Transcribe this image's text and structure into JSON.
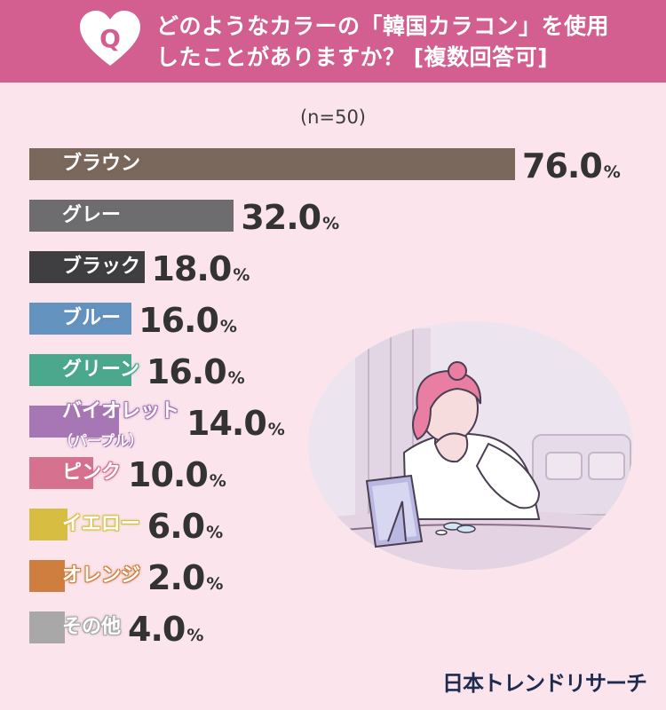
{
  "header": {
    "badge": "Q",
    "question_line1": "どのようなカラーの「韓国カラコン」を使用",
    "question_line2": "したことがありますか？ [複数回答可]"
  },
  "sample_size": "(n=50)",
  "brand": "日本トレンドリサーチ",
  "colors": {
    "header_bg": "#d25f8f",
    "page_bg": "#fbe4ec"
  },
  "chart_data": {
    "type": "bar",
    "orientation": "horizontal",
    "unit": "%",
    "categories": [
      "ブラウン",
      "グレー",
      "ブラック",
      "ブルー",
      "グリーン",
      "バイオレット（パープル）",
      "ピンク",
      "イエロー",
      "オレンジ",
      "その他"
    ],
    "values": [
      76.0,
      32.0,
      18.0,
      16.0,
      16.0,
      14.0,
      10.0,
      6.0,
      2.0,
      4.0
    ],
    "bars": [
      {
        "label": "ブラウン",
        "sub": "",
        "value": 76.0,
        "value_text": "76.0",
        "color": "#7a685c"
      },
      {
        "label": "グレー",
        "sub": "",
        "value": 32.0,
        "value_text": "32.0",
        "color": "#6d6d6f"
      },
      {
        "label": "ブラック",
        "sub": "",
        "value": 18.0,
        "value_text": "18.0",
        "color": "#3f3f41"
      },
      {
        "label": "ブルー",
        "sub": "",
        "value": 16.0,
        "value_text": "16.0",
        "color": "#6493bf"
      },
      {
        "label": "グリーン",
        "sub": "",
        "value": 16.0,
        "value_text": "16.0",
        "color": "#4ba88d"
      },
      {
        "label": "バイオレット",
        "sub": "（パープル）",
        "value": 14.0,
        "value_text": "14.0",
        "color": "#a777b5"
      },
      {
        "label": "ピンク",
        "sub": "",
        "value": 10.0,
        "value_text": "10.0",
        "color": "#d6718f"
      },
      {
        "label": "イエロー",
        "sub": "",
        "value": 6.0,
        "value_text": "6.0",
        "color": "#d7bd42"
      },
      {
        "label": "オレンジ",
        "sub": "",
        "value": 2.0,
        "value_text": "2.0",
        "color": "#ce7e3e"
      },
      {
        "label": "その他",
        "sub": "",
        "value": 4.0,
        "value_text": "4.0",
        "color": "#a8a8a8"
      }
    ]
  }
}
